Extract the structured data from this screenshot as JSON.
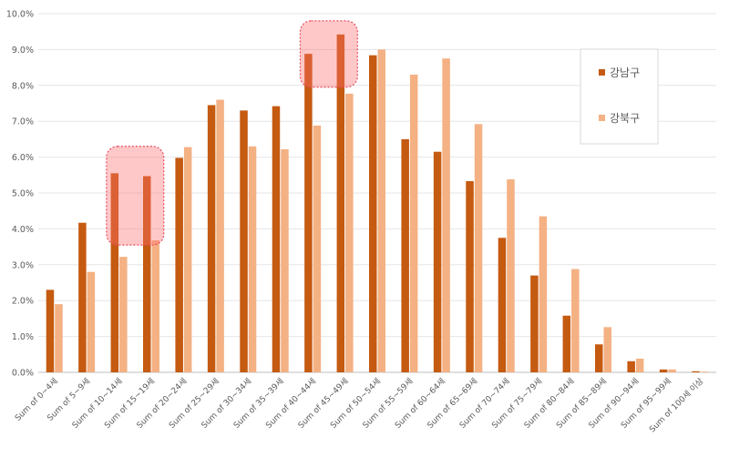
{
  "chart_data": {
    "type": "bar",
    "categories": [
      "Sum of 0~4세",
      "Sum of 5~9세",
      "Sum of 10~14세",
      "Sum of 15~19세",
      "Sum of 20~24세",
      "Sum of 25~29세",
      "Sum of 30~34세",
      "Sum of 35~39세",
      "Sum of 40~44세",
      "Sum of 45~49세",
      "Sum of 50~54세",
      "Sum of 55~59세",
      "Sum of 60~64세",
      "Sum of 65~69세",
      "Sum of 70~74세",
      "Sum of 75~79세",
      "Sum of 80~84세",
      "Sum of 85~89세",
      "Sum of 90~94세",
      "Sum of 95~99세",
      "Sum of 100세 이상"
    ],
    "series": [
      {
        "name": "강남구",
        "color": "#C55A11",
        "values": [
          2.3,
          4.17,
          5.55,
          5.47,
          5.98,
          7.45,
          7.3,
          7.42,
          8.88,
          9.42,
          8.84,
          6.5,
          6.15,
          5.33,
          3.75,
          2.7,
          1.58,
          0.78,
          0.31,
          0.08,
          0.03
        ]
      },
      {
        "name": "강북구",
        "color": "#F4B183",
        "values": [
          1.9,
          2.8,
          3.22,
          3.68,
          6.28,
          7.6,
          6.3,
          6.22,
          6.88,
          7.77,
          9.0,
          8.3,
          8.75,
          6.92,
          5.38,
          4.35,
          2.88,
          1.26,
          0.38,
          0.08,
          0.02
        ]
      }
    ],
    "yticks": [
      "0.0%",
      "1.0%",
      "2.0%",
      "3.0%",
      "4.0%",
      "5.0%",
      "6.0%",
      "7.0%",
      "8.0%",
      "9.0%",
      "10.0%"
    ],
    "ylim": [
      0,
      10
    ],
    "grid": true,
    "legend_position": "right",
    "highlights": [
      {
        "from_category": 2,
        "to_category": 3,
        "y_from": 3.55,
        "y_to": 6.3
      },
      {
        "from_category": 8,
        "to_category": 9,
        "y_from": 7.95,
        "y_to": 9.8
      }
    ]
  }
}
